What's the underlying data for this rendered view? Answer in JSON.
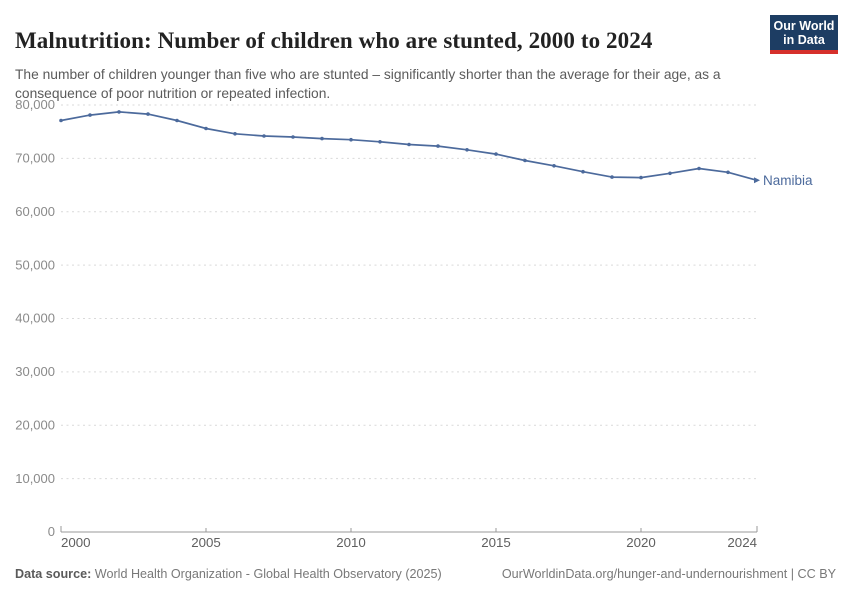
{
  "header": {
    "title": "Malnutrition: Number of children who are stunted, 2000 to 2024",
    "subtitle": "The number of children younger than five who are stunted – significantly shorter than the average for their age, as a consequence of poor nutrition or repeated infection.",
    "logo": {
      "line1": "Our World",
      "line2": "in Data"
    }
  },
  "chart_data": {
    "type": "line",
    "title": "Malnutrition: Number of children who are stunted, 2000 to 2024",
    "xlabel": "",
    "ylabel": "",
    "x": [
      2000,
      2001,
      2002,
      2003,
      2004,
      2005,
      2006,
      2007,
      2008,
      2009,
      2010,
      2011,
      2012,
      2013,
      2014,
      2015,
      2016,
      2017,
      2018,
      2019,
      2020,
      2021,
      2022,
      2023,
      2024
    ],
    "series": [
      {
        "name": "Namibia",
        "color": "#4c6a9c",
        "values": [
          77100,
          78100,
          78700,
          78300,
          77100,
          75600,
          74600,
          74200,
          74000,
          73700,
          73500,
          73100,
          72600,
          72300,
          71600,
          70800,
          69600,
          68600,
          67500,
          66500,
          66400,
          67200,
          68100,
          67400,
          65900
        ]
      }
    ],
    "xlim": [
      2000,
      2024
    ],
    "ylim": [
      0,
      80000
    ],
    "x_ticks": [
      2000,
      2005,
      2010,
      2015,
      2020,
      2024
    ],
    "y_ticks": [
      0,
      10000,
      20000,
      30000,
      40000,
      50000,
      60000,
      70000,
      80000
    ],
    "grid": "horizontal-dashed",
    "legend_position": "end-of-line"
  },
  "footer": {
    "datasource_label": "Data source:",
    "datasource_value": " World Health Organization - Global Health Observatory (2025)",
    "link": "OurWorldinData.org/hunger-and-undernourishment | CC BY"
  },
  "colors": {
    "line": "#4c6a9c",
    "grid": "#d9d9d9",
    "axis": "#999999",
    "x_tick_label": "#5f5f5f",
    "y_tick_label": "#8a8a8a",
    "title": "#222222",
    "subtitle": "#5b5b5b",
    "logo_bg": "#1d3d63",
    "logo_stripe": "#d6302b"
  }
}
